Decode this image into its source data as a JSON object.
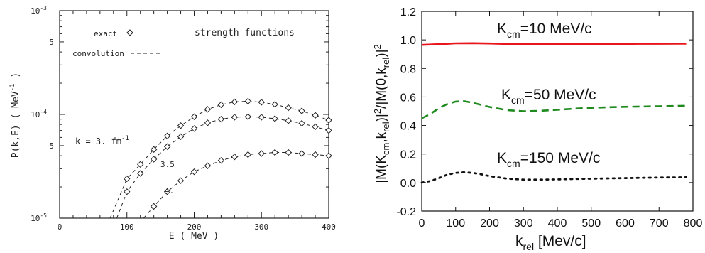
{
  "chart_data": [
    {
      "type": "scatter",
      "title": "strength functions",
      "xlabel": "E ( MeV )",
      "ylabel": "P(k,E) ( MeV",
      "ylabel_sup": "-1",
      "ylabel_close": " )",
      "xlim": [
        0,
        400
      ],
      "ylim": [
        1e-05,
        0.001
      ],
      "yscale": "log",
      "x_ticks": [
        "0",
        "100",
        "200",
        "300",
        "400"
      ],
      "y_ticks": [
        {
          "base": "10",
          "exp": "-5",
          "value": 1e-05
        },
        {
          "base": "5",
          "exp": "",
          "value": 5e-05
        },
        {
          "base": "10",
          "exp": "-4",
          "value": 0.0001
        },
        {
          "base": "5",
          "exp": "",
          "value": 0.0005
        },
        {
          "base": "10",
          "exp": "-3",
          "value": 0.001
        }
      ],
      "legend": [
        {
          "label": "exact",
          "marker": "diamond"
        },
        {
          "label": "convolution",
          "marker": "dashed-line"
        }
      ],
      "annotation": {
        "text": "k = 3. fm",
        "sup": "-1"
      },
      "series": [
        {
          "name": "3.",
          "curve_label": "",
          "points": [
            {
              "x": 100,
              "y": 2.4e-05
            },
            {
              "x": 120,
              "y": 3.3e-05
            },
            {
              "x": 140,
              "y": 4.6e-05
            },
            {
              "x": 160,
              "y": 6.2e-05
            },
            {
              "x": 180,
              "y": 7.8e-05
            },
            {
              "x": 200,
              "y": 9.5e-05
            },
            {
              "x": 220,
              "y": 0.000112
            },
            {
              "x": 240,
              "y": 0.000124
            },
            {
              "x": 260,
              "y": 0.000132
            },
            {
              "x": 280,
              "y": 0.000134
            },
            {
              "x": 300,
              "y": 0.000131
            },
            {
              "x": 320,
              "y": 0.000125
            },
            {
              "x": 340,
              "y": 0.000116
            },
            {
              "x": 360,
              "y": 0.000108
            },
            {
              "x": 380,
              "y": 9.8e-05
            },
            {
              "x": 400,
              "y": 8.8e-05
            }
          ]
        },
        {
          "name": "3.5",
          "curve_label": "3.5",
          "points": [
            {
              "x": 100,
              "y": 1.8e-05
            },
            {
              "x": 120,
              "y": 2.7e-05
            },
            {
              "x": 140,
              "y": 3.7e-05
            },
            {
              "x": 160,
              "y": 4.9e-05
            },
            {
              "x": 180,
              "y": 6.1e-05
            },
            {
              "x": 200,
              "y": 7.3e-05
            },
            {
              "x": 220,
              "y": 8.3e-05
            },
            {
              "x": 240,
              "y": 9e-05
            },
            {
              "x": 260,
              "y": 9.4e-05
            },
            {
              "x": 280,
              "y": 9.5e-05
            },
            {
              "x": 300,
              "y": 9.4e-05
            },
            {
              "x": 320,
              "y": 9.1e-05
            },
            {
              "x": 340,
              "y": 8.7e-05
            },
            {
              "x": 360,
              "y": 8.2e-05
            },
            {
              "x": 380,
              "y": 7.6e-05
            },
            {
              "x": 400,
              "y": 7e-05
            }
          ]
        },
        {
          "name": "4.",
          "curve_label": "4.",
          "points": [
            {
              "x": 140,
              "y": 1.3e-05
            },
            {
              "x": 160,
              "y": 1.8e-05
            },
            {
              "x": 180,
              "y": 2.3e-05
            },
            {
              "x": 200,
              "y": 2.8e-05
            },
            {
              "x": 220,
              "y": 3.2e-05
            },
            {
              "x": 240,
              "y": 3.6e-05
            },
            {
              "x": 260,
              "y": 3.9e-05
            },
            {
              "x": 280,
              "y": 4.1e-05
            },
            {
              "x": 300,
              "y": 4.2e-05
            },
            {
              "x": 320,
              "y": 4.3e-05
            },
            {
              "x": 340,
              "y": 4.3e-05
            },
            {
              "x": 360,
              "y": 4.2e-05
            },
            {
              "x": 380,
              "y": 4.1e-05
            },
            {
              "x": 400,
              "y": 4e-05
            }
          ]
        }
      ],
      "fit_curves": [
        {
          "series": "3.",
          "x": [
            75,
            100,
            120,
            140,
            160,
            180,
            200,
            220,
            240,
            260,
            280,
            300,
            320,
            340,
            360,
            380,
            400
          ],
          "y": [
            1e-05,
            2.4e-05,
            3.3e-05,
            4.6e-05,
            6.2e-05,
            7.8e-05,
            9.5e-05,
            0.000112,
            0.000124,
            0.000132,
            0.000134,
            0.000131,
            0.000125,
            0.000116,
            0.000108,
            9.8e-05,
            8.8e-05
          ]
        },
        {
          "series": "3.5",
          "x": [
            85,
            100,
            120,
            140,
            160,
            180,
            200,
            220,
            240,
            260,
            280,
            300,
            320,
            340,
            360,
            380,
            400
          ],
          "y": [
            1e-05,
            1.8e-05,
            2.7e-05,
            3.7e-05,
            4.9e-05,
            6.1e-05,
            7.3e-05,
            8.3e-05,
            9e-05,
            9.4e-05,
            9.5e-05,
            9.4e-05,
            9.1e-05,
            8.7e-05,
            8.2e-05,
            7.6e-05,
            7e-05
          ]
        },
        {
          "series": "4.",
          "x": [
            125,
            140,
            160,
            180,
            200,
            220,
            240,
            260,
            280,
            300,
            320,
            340,
            360,
            380,
            400
          ],
          "y": [
            1e-05,
            1.3e-05,
            1.8e-05,
            2.3e-05,
            2.8e-05,
            3.2e-05,
            3.6e-05,
            3.9e-05,
            4.1e-05,
            4.2e-05,
            4.3e-05,
            4.3e-05,
            4.2e-05,
            4.1e-05,
            4e-05
          ]
        }
      ],
      "colors": {
        "line": "#222222",
        "marker": "#222222"
      },
      "grid": false
    },
    {
      "type": "line",
      "title": "",
      "xlabel": "k",
      "xlabel_sub": "rel",
      "xlabel_rest": " [Mev/c]",
      "ylabel_parts": [
        "|M(K",
        "cm",
        ",k",
        "rel",
        ")|",
        "2",
        "/|M(0,k",
        "rel",
        ")|",
        "2"
      ],
      "xlim": [
        0,
        800
      ],
      "ylim": [
        -0.2,
        1.2
      ],
      "x_ticks": [
        "0",
        "100",
        "200",
        "300",
        "400",
        "500",
        "600",
        "700",
        "800"
      ],
      "y_ticks": [
        "-0.2",
        "0.0",
        "0.2",
        "0.4",
        "0.6",
        "0.8",
        "1.0",
        "1.2"
      ],
      "grid": false,
      "series": [
        {
          "name": "K_cm=10 MeV/c",
          "label_main": "K",
          "label_sub": "cm",
          "label_rest": "=10 MeV/c",
          "color": "#e8161c",
          "style": "solid",
          "x": [
            0,
            50,
            100,
            150,
            200,
            250,
            300,
            350,
            400,
            450,
            500,
            550,
            600,
            650,
            700,
            750,
            780
          ],
          "y": [
            0.965,
            0.97,
            0.976,
            0.977,
            0.975,
            0.972,
            0.97,
            0.97,
            0.971,
            0.971,
            0.972,
            0.972,
            0.972,
            0.973,
            0.973,
            0.974,
            0.974
          ]
        },
        {
          "name": "K_cm=50 MeV/c",
          "label_main": "K",
          "label_sub": "cm",
          "label_rest": "=50 MeV/c",
          "color": "#1e8a1e",
          "style": "dashed",
          "x": [
            0,
            25,
            50,
            75,
            100,
            125,
            150,
            175,
            200,
            250,
            300,
            350,
            400,
            450,
            500,
            550,
            600,
            650,
            700,
            750,
            780
          ],
          "y": [
            0.45,
            0.48,
            0.52,
            0.55,
            0.568,
            0.57,
            0.56,
            0.545,
            0.53,
            0.508,
            0.5,
            0.503,
            0.51,
            0.518,
            0.524,
            0.528,
            0.531,
            0.533,
            0.535,
            0.537,
            0.538
          ]
        },
        {
          "name": "K_cm=150 MeV/c",
          "label_main": "K",
          "label_sub": "cm",
          "label_rest": "=150 MeV/c",
          "color": "#111111",
          "style": "dotted",
          "x": [
            0,
            25,
            50,
            75,
            100,
            125,
            150,
            175,
            200,
            250,
            300,
            350,
            400,
            450,
            500,
            550,
            600,
            650,
            700,
            750,
            780
          ],
          "y": [
            0.0,
            0.01,
            0.03,
            0.055,
            0.068,
            0.072,
            0.068,
            0.058,
            0.045,
            0.028,
            0.02,
            0.02,
            0.022,
            0.025,
            0.027,
            0.029,
            0.031,
            0.033,
            0.035,
            0.036,
            0.037
          ]
        }
      ]
    }
  ]
}
